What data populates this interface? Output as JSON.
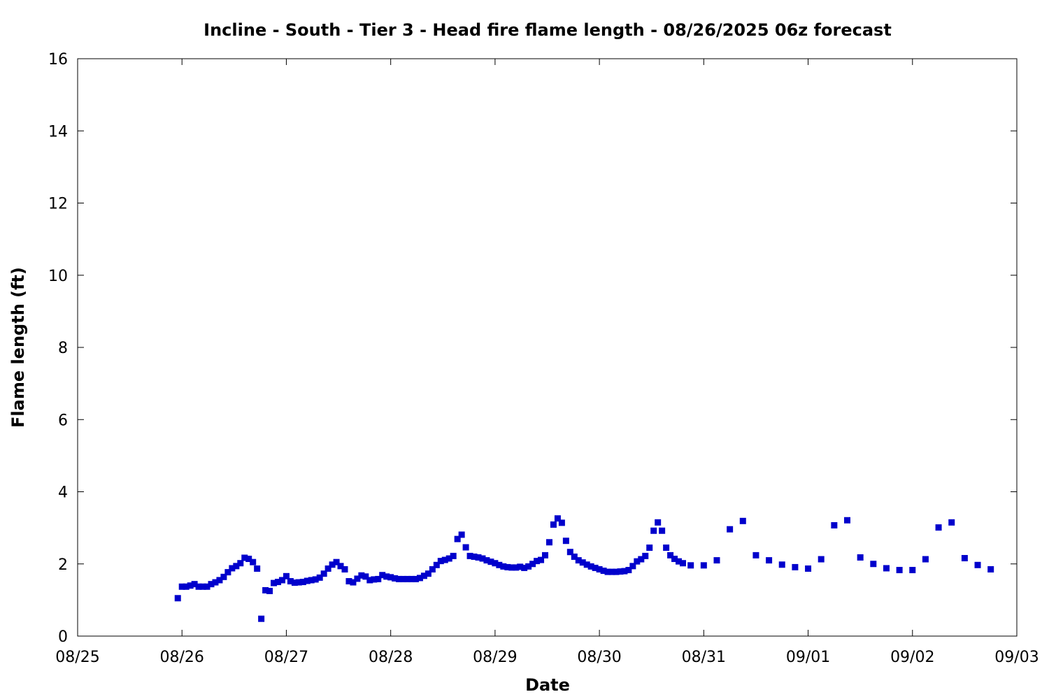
{
  "chart_data": {
    "type": "scatter",
    "title": "Incline - South - Tier 3 - Head fire flame length - 08/26/2025 06z forecast",
    "xlabel": "Date",
    "ylabel": "Flame length (ft)",
    "xlim": [
      "08/25",
      "09/03"
    ],
    "ylim": [
      0,
      16
    ],
    "x_ticks": [
      "08/25",
      "08/26",
      "08/27",
      "08/28",
      "08/29",
      "08/30",
      "08/31",
      "09/01",
      "09/02",
      "09/03"
    ],
    "y_ticks": [
      "0",
      "2",
      "4",
      "6",
      "8",
      "10",
      "12",
      "14",
      "16"
    ],
    "grid": false,
    "legend": "none",
    "marker_color": "#0000cc",
    "marker": "square",
    "x_unit": "days after 08/25 00z",
    "series": [
      {
        "name": "",
        "points": [
          [
            0.96,
            1.05
          ],
          [
            1.0,
            1.37
          ],
          [
            1.04,
            1.37
          ],
          [
            1.08,
            1.4
          ],
          [
            1.12,
            1.44
          ],
          [
            1.16,
            1.37
          ],
          [
            1.2,
            1.37
          ],
          [
            1.24,
            1.37
          ],
          [
            1.28,
            1.44
          ],
          [
            1.32,
            1.49
          ],
          [
            1.36,
            1.55
          ],
          [
            1.4,
            1.64
          ],
          [
            1.44,
            1.77
          ],
          [
            1.48,
            1.88
          ],
          [
            1.52,
            1.94
          ],
          [
            1.56,
            2.02
          ],
          [
            1.6,
            2.17
          ],
          [
            1.64,
            2.14
          ],
          [
            1.68,
            2.05
          ],
          [
            1.72,
            1.87
          ],
          [
            1.76,
            0.48
          ],
          [
            1.8,
            1.27
          ],
          [
            1.84,
            1.25
          ],
          [
            1.88,
            1.47
          ],
          [
            1.92,
            1.5
          ],
          [
            1.96,
            1.55
          ],
          [
            2.0,
            1.66
          ],
          [
            2.04,
            1.52
          ],
          [
            2.08,
            1.48
          ],
          [
            2.12,
            1.49
          ],
          [
            2.16,
            1.5
          ],
          [
            2.2,
            1.53
          ],
          [
            2.24,
            1.55
          ],
          [
            2.28,
            1.57
          ],
          [
            2.32,
            1.62
          ],
          [
            2.36,
            1.73
          ],
          [
            2.4,
            1.87
          ],
          [
            2.44,
            1.98
          ],
          [
            2.48,
            2.05
          ],
          [
            2.52,
            1.94
          ],
          [
            2.56,
            1.85
          ],
          [
            2.6,
            1.52
          ],
          [
            2.64,
            1.49
          ],
          [
            2.68,
            1.59
          ],
          [
            2.72,
            1.68
          ],
          [
            2.76,
            1.65
          ],
          [
            2.8,
            1.55
          ],
          [
            2.84,
            1.57
          ],
          [
            2.88,
            1.58
          ],
          [
            2.92,
            1.69
          ],
          [
            2.96,
            1.65
          ],
          [
            3.0,
            1.63
          ],
          [
            3.04,
            1.6
          ],
          [
            3.08,
            1.58
          ],
          [
            3.12,
            1.58
          ],
          [
            3.16,
            1.58
          ],
          [
            3.2,
            1.58
          ],
          [
            3.24,
            1.58
          ],
          [
            3.28,
            1.61
          ],
          [
            3.32,
            1.67
          ],
          [
            3.36,
            1.73
          ],
          [
            3.4,
            1.85
          ],
          [
            3.44,
            1.97
          ],
          [
            3.48,
            2.08
          ],
          [
            3.52,
            2.11
          ],
          [
            3.56,
            2.15
          ],
          [
            3.6,
            2.22
          ],
          [
            3.64,
            2.69
          ],
          [
            3.68,
            2.81
          ],
          [
            3.72,
            2.46
          ],
          [
            3.76,
            2.22
          ],
          [
            3.8,
            2.2
          ],
          [
            3.84,
            2.18
          ],
          [
            3.88,
            2.15
          ],
          [
            3.92,
            2.1
          ],
          [
            3.96,
            2.06
          ],
          [
            4.0,
            2.02
          ],
          [
            4.04,
            1.97
          ],
          [
            4.08,
            1.93
          ],
          [
            4.12,
            1.91
          ],
          [
            4.16,
            1.9
          ],
          [
            4.2,
            1.9
          ],
          [
            4.24,
            1.92
          ],
          [
            4.28,
            1.89
          ],
          [
            4.32,
            1.93
          ],
          [
            4.36,
            2.0
          ],
          [
            4.4,
            2.08
          ],
          [
            4.44,
            2.11
          ],
          [
            4.48,
            2.24
          ],
          [
            4.52,
            2.6
          ],
          [
            4.56,
            3.09
          ],
          [
            4.6,
            3.26
          ],
          [
            4.64,
            3.14
          ],
          [
            4.68,
            2.64
          ],
          [
            4.72,
            2.33
          ],
          [
            4.76,
            2.2
          ],
          [
            4.8,
            2.1
          ],
          [
            4.84,
            2.04
          ],
          [
            4.88,
            1.98
          ],
          [
            4.92,
            1.93
          ],
          [
            4.96,
            1.89
          ],
          [
            5.0,
            1.85
          ],
          [
            5.04,
            1.81
          ],
          [
            5.08,
            1.78
          ],
          [
            5.12,
            1.78
          ],
          [
            5.16,
            1.78
          ],
          [
            5.2,
            1.79
          ],
          [
            5.24,
            1.8
          ],
          [
            5.28,
            1.83
          ],
          [
            5.32,
            1.94
          ],
          [
            5.36,
            2.07
          ],
          [
            5.4,
            2.13
          ],
          [
            5.44,
            2.22
          ],
          [
            5.48,
            2.45
          ],
          [
            5.52,
            2.92
          ],
          [
            5.56,
            3.15
          ],
          [
            5.6,
            2.92
          ],
          [
            5.64,
            2.45
          ],
          [
            5.68,
            2.24
          ],
          [
            5.72,
            2.14
          ],
          [
            5.76,
            2.07
          ],
          [
            5.8,
            2.02
          ],
          [
            5.875,
            1.96
          ],
          [
            6.0,
            1.96
          ],
          [
            6.125,
            2.1
          ],
          [
            6.25,
            2.96
          ],
          [
            6.375,
            3.19
          ],
          [
            6.5,
            2.24
          ],
          [
            6.625,
            2.1
          ],
          [
            6.75,
            1.98
          ],
          [
            6.875,
            1.91
          ],
          [
            7.0,
            1.87
          ],
          [
            7.125,
            2.13
          ],
          [
            7.25,
            3.07
          ],
          [
            7.375,
            3.21
          ],
          [
            7.5,
            2.18
          ],
          [
            7.625,
            2.0
          ],
          [
            7.75,
            1.88
          ],
          [
            7.875,
            1.83
          ],
          [
            8.0,
            1.83
          ],
          [
            8.125,
            2.13
          ],
          [
            8.25,
            3.01
          ],
          [
            8.375,
            3.15
          ],
          [
            8.5,
            2.16
          ],
          [
            8.625,
            1.97
          ],
          [
            8.75,
            1.85
          ]
        ]
      }
    ]
  }
}
